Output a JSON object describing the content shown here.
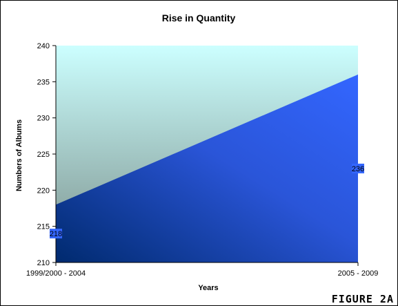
{
  "chart_data": {
    "type": "area",
    "title": "Rise in Quantity",
    "xlabel": "Years",
    "ylabel": "Numbers of Albums",
    "categories": [
      "1999/2000 - 2004",
      "2005 - 2009"
    ],
    "series": [
      {
        "values": [
          218,
          236
        ]
      }
    ],
    "ylim": [
      210,
      240
    ],
    "yticks": [
      210,
      215,
      220,
      225,
      230,
      235,
      240
    ],
    "data_labels": [
      "218",
      "236"
    ],
    "grid": false,
    "legend": "none",
    "colors": {
      "area": "#3366ff",
      "area_dark": "#002a6e",
      "plot_bg_top": "#ccffff",
      "plot_bg_bottom": "#7a8f8a",
      "label_bg": "#3366ff"
    }
  },
  "caption": "FIGURE 2A"
}
